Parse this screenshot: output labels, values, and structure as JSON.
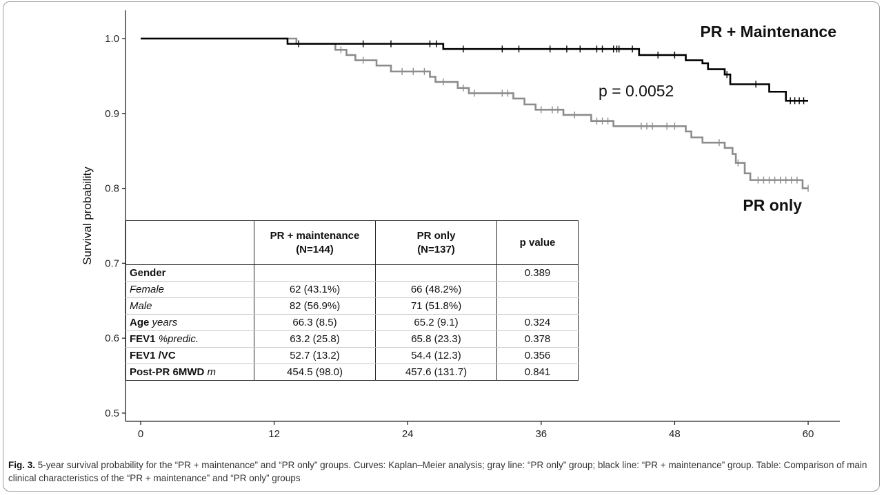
{
  "chart_data": {
    "type": "line",
    "subtype": "kaplan-meier step curves with censoring marks",
    "xlabel": "",
    "ylabel": "Survival probability",
    "xlim": [
      0,
      60
    ],
    "ylim": [
      0.49,
      1.01
    ],
    "x_ticks": [
      0,
      12,
      24,
      36,
      48,
      60
    ],
    "y_ticks": [
      "0.5",
      "0.6",
      "0.7",
      "0.8",
      "0.9",
      "1.0"
    ],
    "grid": false,
    "annotation": "p = 0.0052",
    "series": [
      {
        "name": "PR + Maintenance",
        "color": "#000000",
        "steps": [
          [
            0,
            1.0
          ],
          [
            13.2,
            0.993
          ],
          [
            27.2,
            0.986
          ],
          [
            44.8,
            0.978
          ],
          [
            49.0,
            0.971
          ],
          [
            50.5,
            0.967
          ],
          [
            51.0,
            0.959
          ],
          [
            52.5,
            0.952
          ],
          [
            53.0,
            0.939
          ],
          [
            56.5,
            0.929
          ],
          [
            58.0,
            0.917
          ],
          [
            60,
            0.917
          ]
        ],
        "censored": [
          14.2,
          20.0,
          22.5,
          26.0,
          26.6,
          29.0,
          32.5,
          34.0,
          36.8,
          38.3,
          39.5,
          41.0,
          41.5,
          42.5,
          42.8,
          43.0,
          44.2,
          46.5,
          48.0,
          52.7,
          55.3,
          58.4,
          58.8,
          59.2,
          59.6
        ]
      },
      {
        "name": "PR only",
        "color": "#8c8c8c",
        "steps": [
          [
            0,
            1.0
          ],
          [
            14.0,
            0.993
          ],
          [
            17.5,
            0.985
          ],
          [
            18.5,
            0.978
          ],
          [
            19.3,
            0.971
          ],
          [
            21.2,
            0.964
          ],
          [
            22.5,
            0.956
          ],
          [
            26.0,
            0.949
          ],
          [
            26.5,
            0.942
          ],
          [
            28.5,
            0.934
          ],
          [
            29.5,
            0.927
          ],
          [
            33.5,
            0.92
          ],
          [
            34.5,
            0.912
          ],
          [
            35.5,
            0.905
          ],
          [
            38.0,
            0.898
          ],
          [
            40.5,
            0.89
          ],
          [
            42.5,
            0.883
          ],
          [
            49.0,
            0.876
          ],
          [
            49.5,
            0.868
          ],
          [
            50.5,
            0.861
          ],
          [
            52.5,
            0.854
          ],
          [
            53.2,
            0.846
          ],
          [
            53.5,
            0.834
          ],
          [
            54.3,
            0.82
          ],
          [
            54.8,
            0.811
          ],
          [
            59.5,
            0.8
          ],
          [
            60,
            0.8
          ]
        ],
        "censored": [
          18.0,
          20.0,
          23.5,
          24.5,
          25.5,
          27.2,
          29.0,
          30.0,
          32.5,
          33.0,
          36.0,
          37.0,
          37.5,
          39.0,
          41.0,
          41.5,
          42.0,
          45.0,
          45.5,
          46.0,
          47.3,
          48.0,
          52.0,
          53.7,
          55.5,
          56.0,
          56.5,
          57.0,
          57.5,
          58.0,
          58.5,
          59.0,
          60.0
        ]
      }
    ]
  },
  "table": {
    "headers": [
      "",
      "PR + maintenance\n(N=144)",
      "PR only\n(N=137)",
      "p value"
    ],
    "rows": [
      {
        "label_bold": "Gender",
        "label_italic": "",
        "c1": "",
        "c2": "",
        "p": "0.389"
      },
      {
        "label_bold": "",
        "label_italic": "Female",
        "c1": "62 (43.1%)",
        "c2": "66 (48.2%)",
        "p": ""
      },
      {
        "label_bold": "",
        "label_italic": "Male",
        "c1": "82 (56.9%)",
        "c2": "71 (51.8%)",
        "p": ""
      },
      {
        "label_bold": "Age ",
        "label_italic": "years",
        "c1": "66.3 (8.5)",
        "c2": "65.2 (9.1)",
        "p": "0.324"
      },
      {
        "label_bold": "FEV1 ",
        "label_italic": "%predic.",
        "c1": "63.2 (25.8)",
        "c2": "65.8 (23.3)",
        "p": "0.378"
      },
      {
        "label_bold": "FEV1 /VC",
        "label_italic": "",
        "c1": "52.7 (13.2)",
        "c2": "54.4 (12.3)",
        "p": "0.356"
      },
      {
        "label_bold": "Post-PR 6MWD ",
        "label_italic": "m",
        "c1": "454.5 (98.0)",
        "c2": "457.6 (131.7)",
        "p": "0.841"
      }
    ]
  },
  "caption": {
    "label": "Fig. 3.",
    "text": "5-year survival probability for the “PR + maintenance” and “PR only” groups. Curves: Kaplan–Meier analysis; gray line: “PR only” group; black line: “PR + maintenance” group. Table: Comparison of main clinical characteristics of the “PR + maintenance” and “PR only” groups"
  }
}
